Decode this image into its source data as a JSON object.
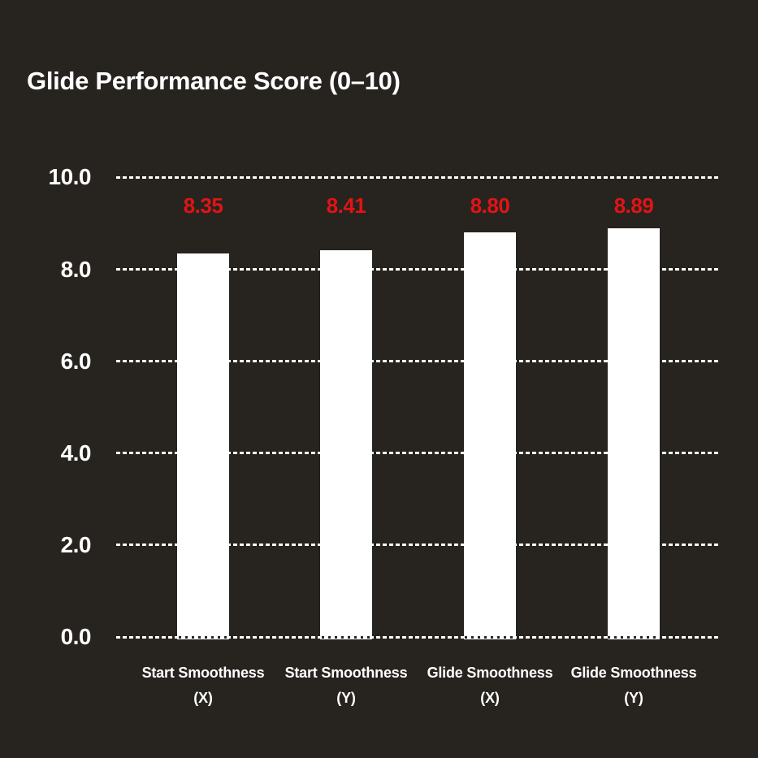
{
  "title": "Glide Performance Score (0–10)",
  "chart_data": {
    "type": "bar",
    "title": "Glide Performance Score (0–10)",
    "categories": [
      "Start Smoothness (X)",
      "Start Smoothness (Y)",
      "Glide Smoothness (X)",
      "Glide Smoothness (Y)"
    ],
    "category_lines": [
      [
        "Start Smoothness",
        "(X)"
      ],
      [
        "Start Smoothness",
        "(Y)"
      ],
      [
        "Glide Smoothness",
        "(X)"
      ],
      [
        "Glide Smoothness",
        "(Y)"
      ]
    ],
    "values": [
      8.35,
      8.41,
      8.8,
      8.89
    ],
    "value_labels": [
      "8.35",
      "8.41",
      "8.80",
      "8.89"
    ],
    "xlabel": "",
    "ylabel": "",
    "ylim": [
      0,
      10
    ],
    "ytick_values": [
      10,
      8,
      6,
      4,
      2,
      0
    ],
    "ytick_labels": [
      "10.0",
      "8.0",
      "6.0",
      "4.0",
      "2.0",
      "0.0"
    ],
    "grid": "horizontal-dashed",
    "legend": "none",
    "colors": {
      "background": "#272420",
      "bar": "#ffffff",
      "value_label": "#e11414",
      "text": "#ffffff"
    }
  }
}
